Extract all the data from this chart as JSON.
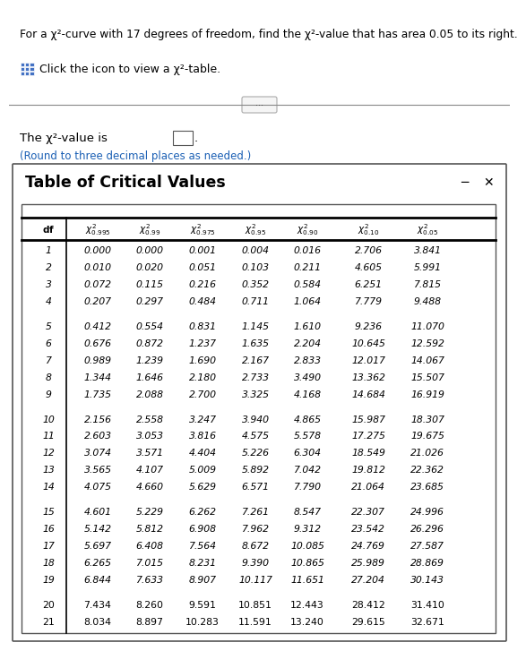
{
  "title_text": "For a χ²-curve with 17 degrees of freedom, find the χ²-value that has area 0.05 to its right.",
  "click_text": "Click the icon to view a χ²-table.",
  "answer_text": "The χ²-value is",
  "round_text": "(Round to three decimal places as needed.)",
  "table_title": "Table of Critical Values",
  "col_headers_latex": [
    "$\\mathbf{df}$",
    "$\\chi^2_{0.995}$",
    "$\\chi^2_{0.99}$",
    "$\\chi^2_{0.975}$",
    "$\\chi^2_{0.95}$",
    "$\\chi^2_{0.90}$",
    "$\\chi^2_{0.10}$",
    "$\\chi^2_{0.05}$"
  ],
  "rows": [
    [
      1,
      "0.000",
      "0.000",
      "0.001",
      "0.004",
      "0.016",
      "2.706",
      "3.841"
    ],
    [
      2,
      "0.010",
      "0.020",
      "0.051",
      "0.103",
      "0.211",
      "4.605",
      "5.991"
    ],
    [
      3,
      "0.072",
      "0.115",
      "0.216",
      "0.352",
      "0.584",
      "6.251",
      "7.815"
    ],
    [
      4,
      "0.207",
      "0.297",
      "0.484",
      "0.711",
      "1.064",
      "7.779",
      "9.488"
    ],
    [
      5,
      "0.412",
      "0.554",
      "0.831",
      "1.145",
      "1.610",
      "9.236",
      "11.070"
    ],
    [
      6,
      "0.676",
      "0.872",
      "1.237",
      "1.635",
      "2.204",
      "10.645",
      "12.592"
    ],
    [
      7,
      "0.989",
      "1.239",
      "1.690",
      "2.167",
      "2.833",
      "12.017",
      "14.067"
    ],
    [
      8,
      "1.344",
      "1.646",
      "2.180",
      "2.733",
      "3.490",
      "13.362",
      "15.507"
    ],
    [
      9,
      "1.735",
      "2.088",
      "2.700",
      "3.325",
      "4.168",
      "14.684",
      "16.919"
    ],
    [
      10,
      "2.156",
      "2.558",
      "3.247",
      "3.940",
      "4.865",
      "15.987",
      "18.307"
    ],
    [
      11,
      "2.603",
      "3.053",
      "3.816",
      "4.575",
      "5.578",
      "17.275",
      "19.675"
    ],
    [
      12,
      "3.074",
      "3.571",
      "4.404",
      "5.226",
      "6.304",
      "18.549",
      "21.026"
    ],
    [
      13,
      "3.565",
      "4.107",
      "5.009",
      "5.892",
      "7.042",
      "19.812",
      "22.362"
    ],
    [
      14,
      "4.075",
      "4.660",
      "5.629",
      "6.571",
      "7.790",
      "21.064",
      "23.685"
    ],
    [
      15,
      "4.601",
      "5.229",
      "6.262",
      "7.261",
      "8.547",
      "22.307",
      "24.996"
    ],
    [
      16,
      "5.142",
      "5.812",
      "6.908",
      "7.962",
      "9.312",
      "23.542",
      "26.296"
    ],
    [
      17,
      "5.697",
      "6.408",
      "7.564",
      "8.672",
      "10.085",
      "24.769",
      "27.587"
    ],
    [
      18,
      "6.265",
      "7.015",
      "8.231",
      "9.390",
      "10.865",
      "25.989",
      "28.869"
    ],
    [
      19,
      "6.844",
      "7.633",
      "8.907",
      "10.117",
      "11.651",
      "27.204",
      "30.143"
    ],
    [
      20,
      "7.434",
      "8.260",
      "9.591",
      "10.851",
      "12.443",
      "28.412",
      "31.410"
    ],
    [
      21,
      "8.034",
      "8.897",
      "10.283",
      "11.591",
      "13.240",
      "29.615",
      "32.671"
    ]
  ],
  "group_breaks": [
    4,
    9,
    14,
    19
  ],
  "italic_dfs": [
    1,
    2,
    3,
    4,
    5,
    6,
    7,
    8,
    9,
    10,
    11,
    12,
    13,
    14,
    15,
    16,
    17,
    18,
    19
  ],
  "roman_dfs": [
    20,
    21
  ],
  "bg_color": "#ffffff",
  "text_color": "#000000",
  "blue_color": "#1a5fb4",
  "link_color": "#4472c4",
  "gray_line_color": "#888888",
  "table_border_color": "#555555"
}
